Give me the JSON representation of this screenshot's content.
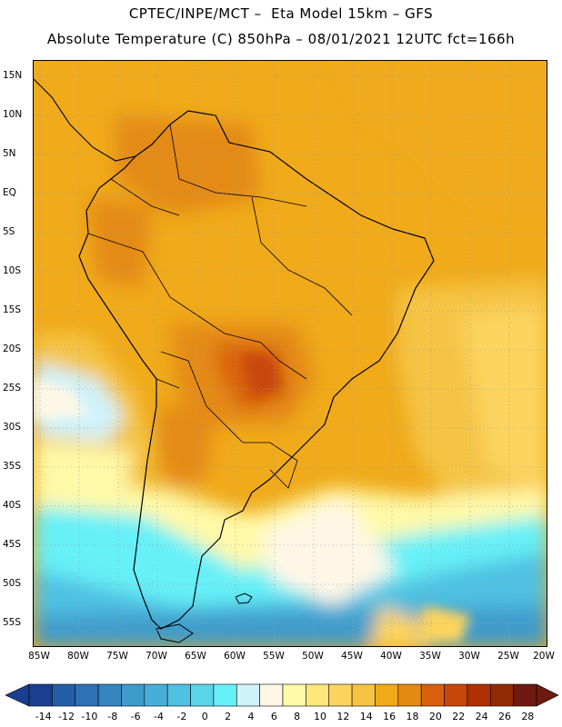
{
  "header": {
    "line1": "CPTEC/INPE/MCT –  Eta Model 15km – GFS",
    "line2": "Absolute Temperature (C) 850hPa – 08/01/2021 12UTC fct=166h"
  },
  "map": {
    "lat_labels": [
      "15N",
      "10N",
      "5N",
      "EQ",
      "5S",
      "10S",
      "15S",
      "20S",
      "25S",
      "30S",
      "35S",
      "40S",
      "45S",
      "50S",
      "55S"
    ],
    "lon_labels": [
      "85W",
      "80W",
      "75W",
      "70W",
      "65W",
      "60W",
      "55W",
      "50W",
      "45W",
      "40W",
      "35W",
      "30W",
      "25W",
      "20W"
    ],
    "regions": [
      "south-america-continent",
      "atlantic-ocean",
      "pacific-ocean",
      "falkland-islands",
      "tierra-del-fuego"
    ]
  },
  "colorbar": {
    "labels": [
      "-14",
      "-12",
      "-10",
      "-8",
      "-6",
      "-4",
      "-2",
      "0",
      "2",
      "4",
      "6",
      "8",
      "10",
      "12",
      "14",
      "16",
      "18",
      "20",
      "22",
      "24",
      "26",
      "28"
    ],
    "colors": [
      "#1a3f8f",
      "#235ea8",
      "#2c72b4",
      "#3585bf",
      "#3f9bcb",
      "#47aed8",
      "#50c1e2",
      "#5ad6ea",
      "#66f0f8",
      "#cff3fb",
      "#fff7e6",
      "#fff9a8",
      "#ffe77a",
      "#fcd45f",
      "#f5c444",
      "#f0aa1a",
      "#e48a12",
      "#d9600c",
      "#c84607",
      "#b03004",
      "#922a05",
      "#6e1a10"
    ]
  }
}
